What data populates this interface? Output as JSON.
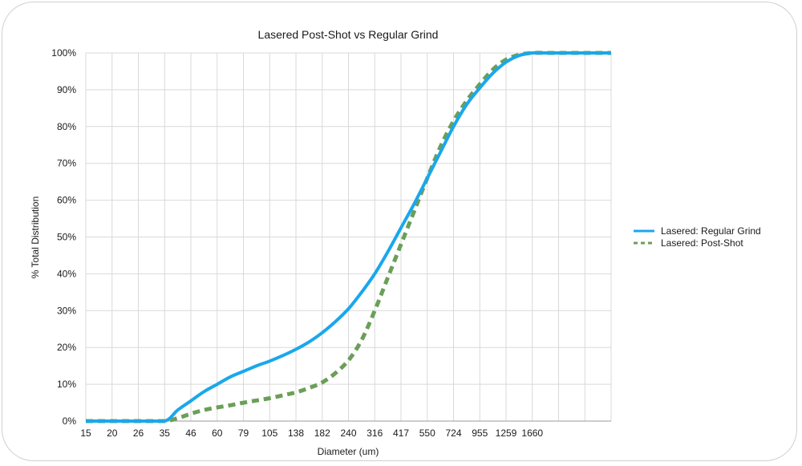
{
  "chart_data": {
    "type": "line",
    "title": "Lasered Post-Shot vs Regular Grind",
    "xlabel": "Diameter (um)",
    "ylabel": "% Total Distribution",
    "categories": [
      "15",
      "20",
      "26",
      "35",
      "46",
      "60",
      "79",
      "105",
      "138",
      "182",
      "240",
      "316",
      "417",
      "550",
      "724",
      "955",
      "1259",
      "1660"
    ],
    "ylim": [
      0,
      1
    ],
    "yticks": [
      "0%",
      "10%",
      "20%",
      "30%",
      "40%",
      "50%",
      "60%",
      "70%",
      "80%",
      "90%",
      "100%"
    ],
    "grid": true,
    "legend_position": "right",
    "series": [
      {
        "name": "Lasered: Regular Grind",
        "color": "#1aa7ec",
        "style": "solid",
        "points": [
          [
            0,
            0
          ],
          [
            1,
            0
          ],
          [
            2,
            0
          ],
          [
            3,
            0
          ],
          [
            3.5,
            0.03
          ],
          [
            4,
            0.055
          ],
          [
            4.5,
            0.08
          ],
          [
            5,
            0.1
          ],
          [
            5.5,
            0.12
          ],
          [
            6,
            0.135
          ],
          [
            6.5,
            0.15
          ],
          [
            7,
            0.163
          ],
          [
            7.5,
            0.178
          ],
          [
            8,
            0.195
          ],
          [
            8.5,
            0.215
          ],
          [
            9,
            0.24
          ],
          [
            9.5,
            0.27
          ],
          [
            10,
            0.305
          ],
          [
            10.5,
            0.35
          ],
          [
            11,
            0.4
          ],
          [
            11.5,
            0.46
          ],
          [
            12,
            0.525
          ],
          [
            12.5,
            0.59
          ],
          [
            13,
            0.66
          ],
          [
            13.5,
            0.73
          ],
          [
            14,
            0.8
          ],
          [
            14.5,
            0.86
          ],
          [
            15,
            0.905
          ],
          [
            15.5,
            0.945
          ],
          [
            16,
            0.975
          ],
          [
            16.5,
            0.993
          ],
          [
            17,
            1
          ],
          [
            17.5,
            1
          ],
          [
            18,
            1
          ],
          [
            19,
            1
          ],
          [
            20,
            1
          ]
        ]
      },
      {
        "name": "Lasered: Post-Shot",
        "color": "#6a9f58",
        "style": "dashed",
        "points": [
          [
            0,
            0
          ],
          [
            1,
            0
          ],
          [
            2,
            0
          ],
          [
            3,
            0
          ],
          [
            3.5,
            0.008
          ],
          [
            4,
            0.02
          ],
          [
            4.5,
            0.03
          ],
          [
            5,
            0.037
          ],
          [
            5.5,
            0.043
          ],
          [
            6,
            0.05
          ],
          [
            6.5,
            0.056
          ],
          [
            7,
            0.062
          ],
          [
            7.5,
            0.07
          ],
          [
            8,
            0.078
          ],
          [
            8.5,
            0.09
          ],
          [
            9,
            0.105
          ],
          [
            9.5,
            0.13
          ],
          [
            10,
            0.165
          ],
          [
            10.5,
            0.22
          ],
          [
            11,
            0.3
          ],
          [
            11.5,
            0.39
          ],
          [
            12,
            0.48
          ],
          [
            12.5,
            0.57
          ],
          [
            13,
            0.66
          ],
          [
            13.5,
            0.745
          ],
          [
            14,
            0.815
          ],
          [
            14.5,
            0.87
          ],
          [
            15,
            0.915
          ],
          [
            15.5,
            0.955
          ],
          [
            16,
            0.982
          ],
          [
            16.5,
            0.995
          ],
          [
            17,
            1
          ],
          [
            17.5,
            1
          ],
          [
            18,
            1
          ],
          [
            19,
            1
          ],
          [
            20,
            1
          ]
        ]
      }
    ]
  }
}
